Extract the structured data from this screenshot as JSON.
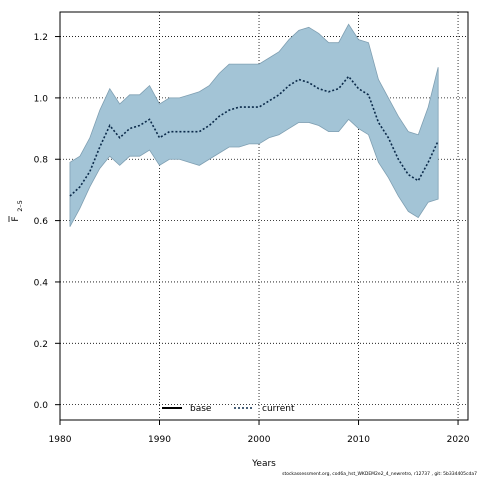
{
  "chart_data": {
    "type": "area",
    "xlabel": "Years",
    "ylabel_main": "F",
    "ylabel_sub": "2–5",
    "xlim": [
      1980,
      2021
    ],
    "ylim": [
      -0.05,
      1.28
    ],
    "xticks": [
      1980,
      1990,
      2000,
      2010,
      2020
    ],
    "yticks": [
      0.0,
      0.2,
      0.4,
      0.6,
      0.8,
      1.0,
      1.2
    ],
    "ytick_labels": [
      "0.0",
      "0.2",
      "0.4",
      "0.6",
      "0.8",
      "1.0",
      "1.2"
    ],
    "grid": true,
    "band_color": "#a3c4d6",
    "band_edge_color": "#7f9fb2",
    "line_color": "#0b2a4a",
    "legend_position": "bottom-center",
    "legend": [
      {
        "label": "base",
        "style": "solid"
      },
      {
        "label": "current",
        "style": "dotted"
      }
    ],
    "x": [
      1981,
      1982,
      1983,
      1984,
      1985,
      1986,
      1987,
      1988,
      1989,
      1990,
      1991,
      1992,
      1993,
      1994,
      1995,
      1996,
      1997,
      1998,
      1999,
      2000,
      2001,
      2002,
      2003,
      2004,
      2005,
      2006,
      2007,
      2008,
      2009,
      2010,
      2011,
      2012,
      2013,
      2014,
      2015,
      2016,
      2017,
      2018
    ],
    "series": [
      {
        "name": "current",
        "values": [
          0.68,
          0.71,
          0.76,
          0.84,
          0.91,
          0.87,
          0.9,
          0.91,
          0.93,
          0.87,
          0.89,
          0.89,
          0.89,
          0.89,
          0.91,
          0.94,
          0.96,
          0.97,
          0.97,
          0.97,
          0.99,
          1.01,
          1.04,
          1.06,
          1.05,
          1.03,
          1.02,
          1.03,
          1.07,
          1.03,
          1.01,
          0.92,
          0.87,
          0.8,
          0.75,
          0.73,
          0.79,
          0.86
        ],
        "lower": [
          0.58,
          0.64,
          0.71,
          0.77,
          0.81,
          0.78,
          0.81,
          0.81,
          0.83,
          0.78,
          0.8,
          0.8,
          0.79,
          0.78,
          0.8,
          0.82,
          0.84,
          0.84,
          0.85,
          0.85,
          0.87,
          0.88,
          0.9,
          0.92,
          0.92,
          0.91,
          0.89,
          0.89,
          0.93,
          0.9,
          0.88,
          0.79,
          0.74,
          0.68,
          0.63,
          0.61,
          0.66,
          0.67
        ],
        "upper": [
          0.79,
          0.81,
          0.87,
          0.96,
          1.03,
          0.98,
          1.01,
          1.01,
          1.04,
          0.98,
          1.0,
          1.0,
          1.01,
          1.02,
          1.04,
          1.08,
          1.11,
          1.11,
          1.11,
          1.11,
          1.13,
          1.15,
          1.19,
          1.22,
          1.23,
          1.21,
          1.18,
          1.18,
          1.24,
          1.19,
          1.18,
          1.06,
          1.0,
          0.94,
          0.89,
          0.88,
          0.97,
          1.1
        ]
      }
    ]
  },
  "footer": "stockassessment.org, cod6a_hst_WKDEM2e2_4_newretro, r12737 , git: 5b334405cda7"
}
